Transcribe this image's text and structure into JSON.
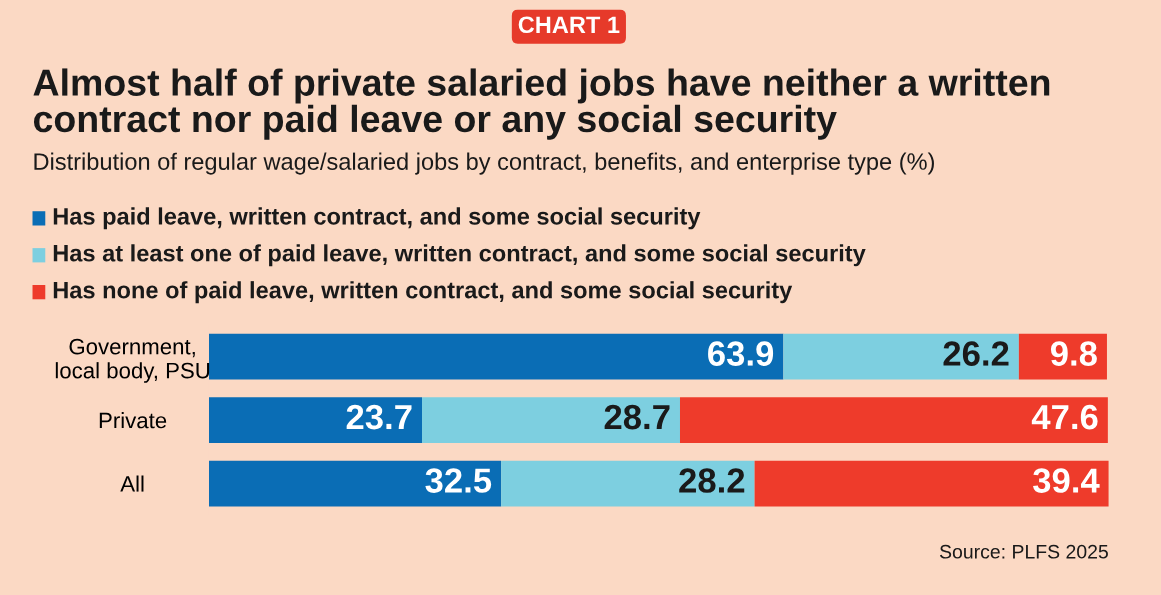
{
  "chart_data": {
    "type": "bar",
    "orientation": "horizontal",
    "stacked": true,
    "title": "Almost half of private salaried jobs have neither a written contract nor paid leave or any social security",
    "subtitle": "Distribution of regular wage/salaried jobs by contract, benefits, and enterprise type (%)",
    "categories": [
      "Government,\nlocal body, PSU",
      "Private",
      "All"
    ],
    "series": [
      {
        "name": "Has paid leave, written contract, and some social security",
        "color": "#0a6db5",
        "values": [
          63.9,
          23.7,
          32.5
        ]
      },
      {
        "name": "Has at least one of paid leave, written contract, and some social security",
        "color": "#7dcfe0",
        "values": [
          26.2,
          28.7,
          28.2
        ]
      },
      {
        "name": "Has none of paid leave, written contract, and some social security",
        "color": "#ee3b2b",
        "values": [
          9.8,
          47.6,
          39.4
        ]
      }
    ],
    "data_labels": true,
    "legend": "top",
    "tick_labels": "y",
    "annotations": [
      "CHART 1",
      "Source: PLFS 2025"
    ]
  }
}
